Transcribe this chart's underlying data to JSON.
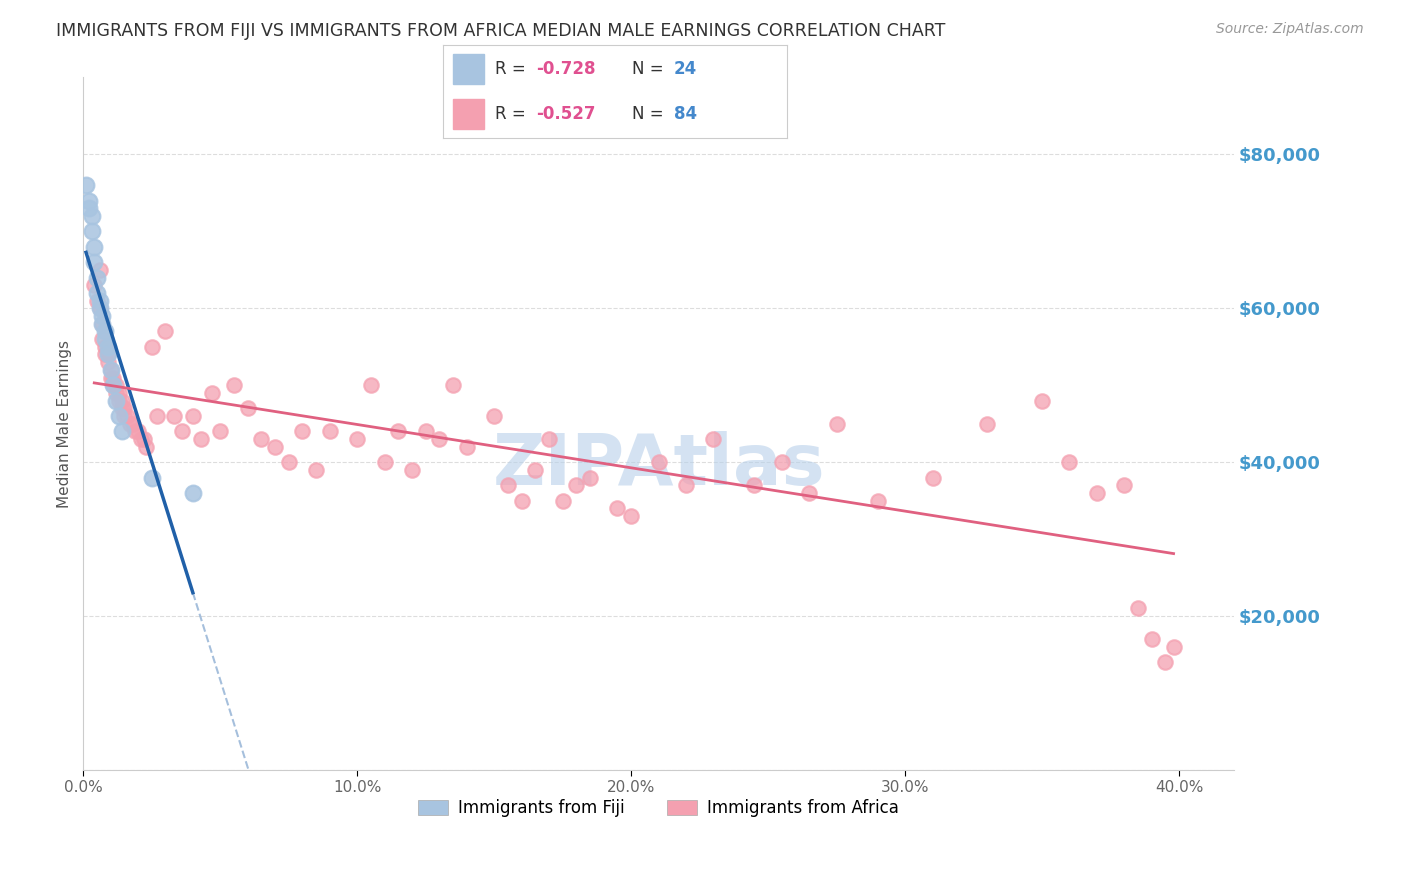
{
  "title": "IMMIGRANTS FROM FIJI VS IMMIGRANTS FROM AFRICA MEDIAN MALE EARNINGS CORRELATION CHART",
  "source": "Source: ZipAtlas.com",
  "ylabel": "Median Male Earnings",
  "xlim": [
    0.0,
    0.42
  ],
  "ylim": [
    0,
    90000
  ],
  "yticks": [
    0,
    20000,
    40000,
    60000,
    80000
  ],
  "ytick_labels": [
    "",
    "$20,000",
    "$40,000",
    "$60,000",
    "$80,000"
  ],
  "xticks": [
    0.0,
    0.1,
    0.2,
    0.3,
    0.4
  ],
  "xtick_labels": [
    "0.0%",
    "10.0%",
    "20.0%",
    "30.0%",
    "40.0%"
  ],
  "fiji_R": "-0.728",
  "fiji_N": "24",
  "africa_R": "-0.527",
  "africa_N": "84",
  "fiji_color": "#a8c4e0",
  "africa_color": "#f4a0b0",
  "fiji_line_color": "#2060a8",
  "africa_line_color": "#e06080",
  "watermark_color": "#b8d0ea",
  "background_color": "#ffffff",
  "grid_color": "#dddddd",
  "title_color": "#333333",
  "source_color": "#999999",
  "axis_label_color": "#555555",
  "ytick_color": "#4499cc",
  "xtick_color": "#666666",
  "legend_border_color": "#cccccc",
  "fiji_x": [
    0.001,
    0.002,
    0.002,
    0.003,
    0.003,
    0.004,
    0.004,
    0.005,
    0.005,
    0.006,
    0.006,
    0.007,
    0.007,
    0.008,
    0.008,
    0.009,
    0.009,
    0.01,
    0.011,
    0.012,
    0.013,
    0.014,
    0.025,
    0.04
  ],
  "fiji_y": [
    76000,
    74000,
    73000,
    72000,
    70000,
    68000,
    66000,
    64000,
    62000,
    61000,
    60000,
    59000,
    58000,
    57000,
    56000,
    55000,
    54000,
    52000,
    50000,
    48000,
    46000,
    44000,
    38000,
    36000
  ],
  "africa_x": [
    0.004,
    0.005,
    0.006,
    0.006,
    0.007,
    0.007,
    0.008,
    0.008,
    0.009,
    0.009,
    0.01,
    0.01,
    0.011,
    0.011,
    0.012,
    0.012,
    0.013,
    0.013,
    0.014,
    0.014,
    0.015,
    0.015,
    0.016,
    0.017,
    0.018,
    0.019,
    0.02,
    0.021,
    0.022,
    0.023,
    0.025,
    0.027,
    0.03,
    0.033,
    0.036,
    0.04,
    0.043,
    0.047,
    0.05,
    0.055,
    0.06,
    0.065,
    0.07,
    0.075,
    0.08,
    0.085,
    0.09,
    0.1,
    0.105,
    0.11,
    0.115,
    0.12,
    0.125,
    0.13,
    0.135,
    0.14,
    0.15,
    0.155,
    0.16,
    0.165,
    0.17,
    0.175,
    0.18,
    0.185,
    0.195,
    0.2,
    0.21,
    0.22,
    0.23,
    0.245,
    0.255,
    0.265,
    0.275,
    0.29,
    0.31,
    0.33,
    0.35,
    0.36,
    0.37,
    0.38,
    0.385,
    0.39,
    0.395,
    0.398
  ],
  "africa_y": [
    63000,
    61000,
    65000,
    60000,
    58000,
    56000,
    55000,
    54000,
    54000,
    53000,
    52000,
    51000,
    51000,
    50000,
    50000,
    49000,
    49000,
    48000,
    48000,
    47000,
    47000,
    46000,
    46000,
    45000,
    45000,
    44000,
    44000,
    43000,
    43000,
    42000,
    55000,
    46000,
    57000,
    46000,
    44000,
    46000,
    43000,
    49000,
    44000,
    50000,
    47000,
    43000,
    42000,
    40000,
    44000,
    39000,
    44000,
    43000,
    50000,
    40000,
    44000,
    39000,
    44000,
    43000,
    50000,
    42000,
    46000,
    37000,
    35000,
    39000,
    43000,
    35000,
    37000,
    38000,
    34000,
    33000,
    40000,
    37000,
    43000,
    37000,
    40000,
    36000,
    45000,
    35000,
    38000,
    45000,
    48000,
    40000,
    36000,
    37000,
    21000,
    17000,
    14000,
    16000
  ]
}
